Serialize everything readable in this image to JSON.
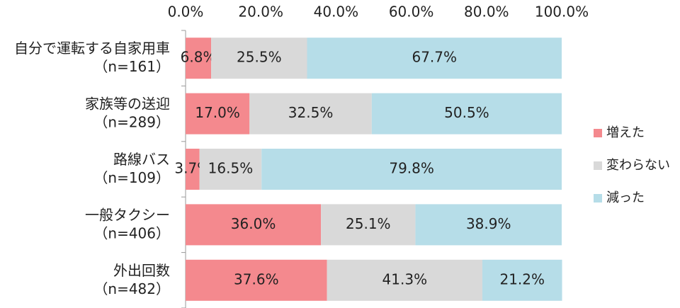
{
  "chart_data": {
    "type": "stacked_barh",
    "categories": [
      [
        "自分で運転する自家用車",
        "（n=161）"
      ],
      [
        "家族等の送迎",
        "（n=289）"
      ],
      [
        "路線バス",
        "（n=109）"
      ],
      [
        "一般タクシー",
        "（n=406）"
      ],
      [
        "外出回数",
        "（n=482）"
      ]
    ],
    "series": [
      {
        "name": "増えた",
        "color": "#f4898e",
        "values": [
          6.8,
          17.0,
          3.7,
          36.0,
          37.6
        ],
        "value_labels": [
          "6.8%",
          "17.0%",
          "3.7%",
          "36.0%",
          "37.6%"
        ]
      },
      {
        "name": "変わらない",
        "color": "#d9d9d9",
        "values": [
          25.5,
          32.5,
          16.5,
          25.1,
          41.3
        ],
        "value_labels": [
          "25.5%",
          "32.5%",
          "16.5%",
          "25.1%",
          "41.3%"
        ]
      },
      {
        "name": "減った",
        "color": "#b6dde8",
        "values": [
          67.7,
          50.5,
          79.8,
          38.9,
          21.2
        ],
        "value_labels": [
          "67.7%",
          "50.5%",
          "79.8%",
          "38.9%",
          "21.2%"
        ]
      }
    ],
    "xlim": [
      0,
      100
    ],
    "xticks": [
      {
        "value": 0,
        "label": "0.0%"
      },
      {
        "value": 20,
        "label": "20.0%"
      },
      {
        "value": 40,
        "label": "40.0%"
      },
      {
        "value": 60,
        "label": "60.0%"
      },
      {
        "value": 80,
        "label": "80.0%"
      },
      {
        "value": 100,
        "label": "100.0%"
      }
    ],
    "legend": "right"
  }
}
